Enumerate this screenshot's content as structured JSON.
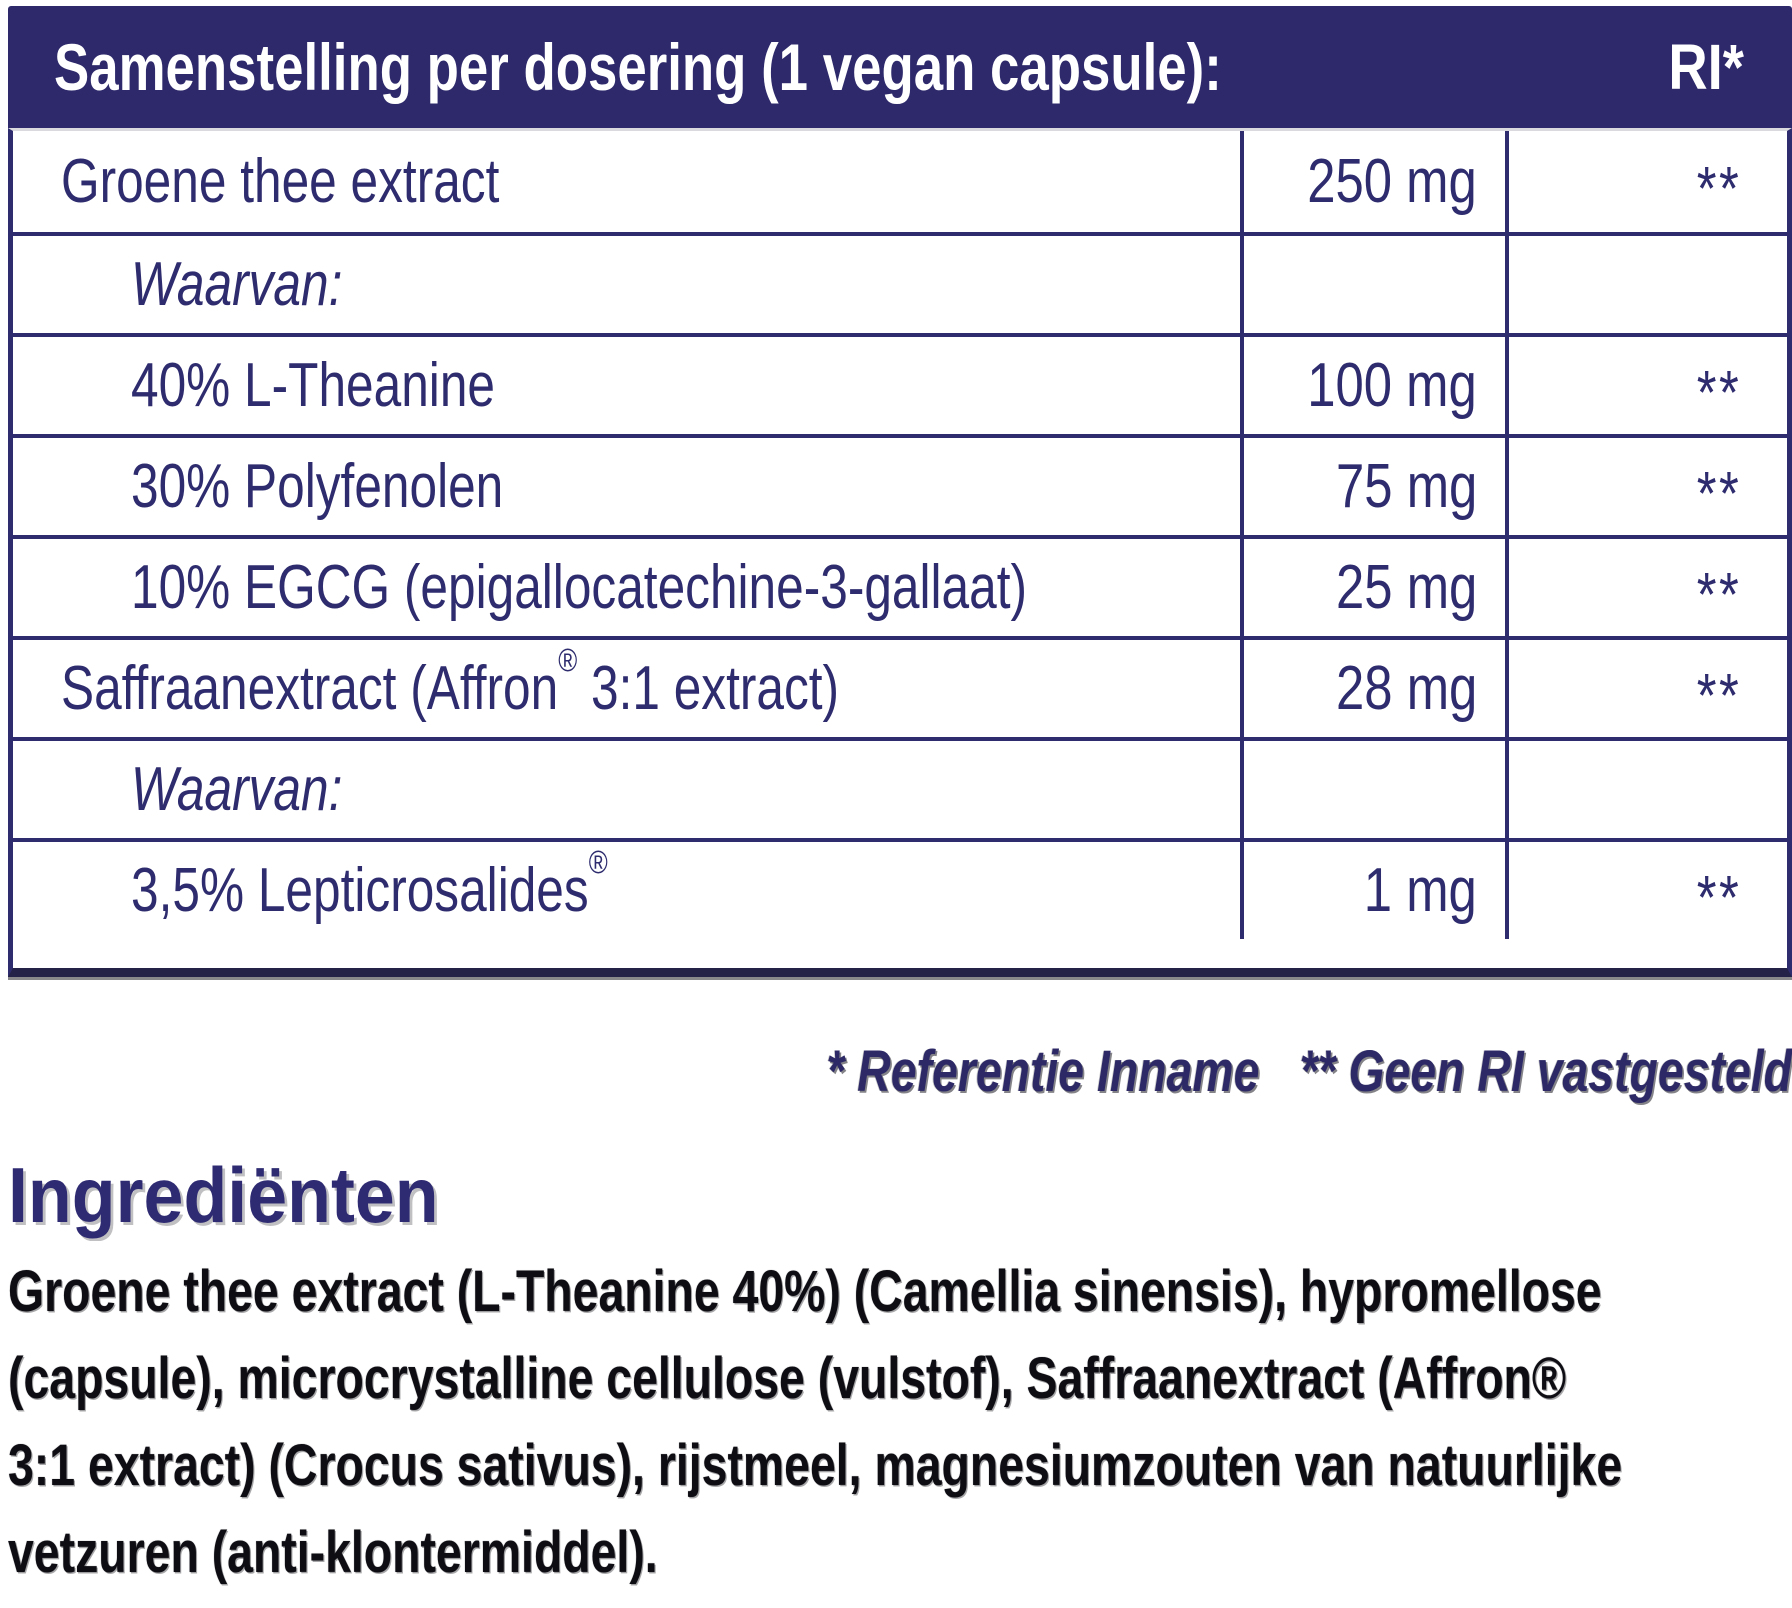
{
  "colors": {
    "navy_header": "#2d296b",
    "navy_border_text": "#2e2c6e",
    "paragraph_text": "#0d0d13",
    "background": "#ffffff"
  },
  "table": {
    "header": {
      "title": "Samenstelling per dosering (1 vegan capsule):",
      "ri_label": "RI*"
    },
    "rows": [
      {
        "label": "Groene thee extract",
        "amount": "250 mg",
        "ri": "**"
      },
      {
        "label": "Waarvan:",
        "amount": "",
        "ri": ""
      },
      {
        "label": "40% L-Theanine",
        "amount": "100 mg",
        "ri": "**"
      },
      {
        "label": "30% Polyfenolen",
        "amount": "75 mg",
        "ri": "**"
      },
      {
        "label": "10% EGCG (epigallocatechine-3-gallaat)",
        "amount": "25 mg",
        "ri": "**"
      },
      {
        "label_pre": "Saffraanextract (Affron",
        "label_reg": "®",
        "label_post": " 3:1 extract)",
        "amount": "28 mg",
        "ri": "**"
      },
      {
        "label": "Waarvan:",
        "amount": "",
        "ri": ""
      },
      {
        "label_pre": "3,5% Lepticrosalides",
        "label_reg": "®",
        "label_post": "",
        "amount": "1 mg",
        "ri": "**"
      }
    ]
  },
  "footnotes": {
    "reference": "* Referentie Inname",
    "no_ri": "** Geen RI vastgesteld"
  },
  "ingredients": {
    "heading": "Ingrediënten",
    "lines": [
      "Groene thee extract (L-Theanine 40%) (Camellia sinensis), hypromellose",
      "(capsule), microcrystalline cellulose (vulstof), Saffraanextract (Affron®",
      "3:1 extract) (Crocus sativus), rijstmeel, magnesiumzouten van natuurlijke",
      "vetzuren (anti-klontermiddel)."
    ]
  }
}
